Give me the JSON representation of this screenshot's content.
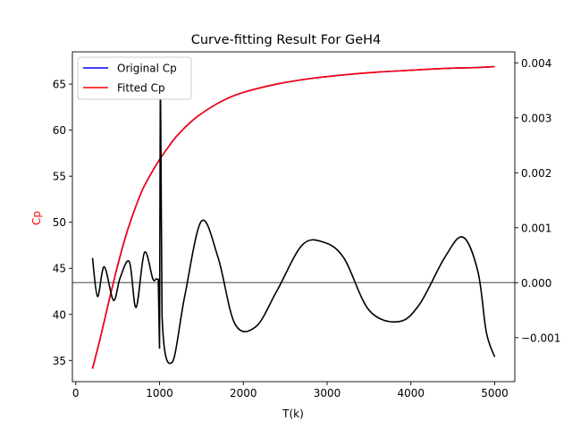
{
  "chart_data": {
    "type": "line",
    "title": "Curve-fitting Result For GeH4",
    "xlabel": "T(k)",
    "ylabel_left": "Cp",
    "ylabel_right": "",
    "xlim": [
      -40,
      5240
    ],
    "ylim_left": [
      32.7,
      68.5
    ],
    "ylim_right": [
      -0.0018,
      0.0042
    ],
    "x_ticks": [
      0,
      1000,
      2000,
      3000,
      4000,
      5000
    ],
    "x_tick_labels": [
      "0",
      "1000",
      "2000",
      "3000",
      "4000",
      "5000"
    ],
    "y_left_ticks": [
      35,
      40,
      45,
      50,
      55,
      60,
      65
    ],
    "y_left_tick_labels": [
      "35",
      "40",
      "45",
      "50",
      "55",
      "60",
      "65"
    ],
    "y_right_ticks": [
      -0.001,
      0,
      0.001,
      0.002,
      0.003,
      0.004
    ],
    "y_right_tick_labels": [
      "−0.001",
      "0.000",
      "0.001",
      "0.002",
      "0.003",
      "0.004"
    ],
    "legend_position": "top-left",
    "grid": false,
    "ylabel_color": "#ff0000",
    "series": [
      {
        "name": "Original Cp",
        "axis": "left",
        "color": "#0000ff",
        "x": [
          200,
          300,
          400,
          500,
          600,
          700,
          800,
          900,
          1000,
          1100,
          1200,
          1400,
          1600,
          1800,
          2000,
          2400,
          2800,
          3200,
          3600,
          4000,
          4400,
          4800,
          5000
        ],
        "y": [
          34.1,
          37.7,
          41.6,
          45.3,
          48.6,
          51.3,
          53.6,
          55.3,
          56.8,
          58.1,
          59.3,
          61.1,
          62.4,
          63.4,
          64.1,
          65.0,
          65.6,
          66.0,
          66.3,
          66.5,
          66.7,
          66.8,
          66.9
        ]
      },
      {
        "name": "Fitted Cp",
        "axis": "left",
        "color": "#ff0000",
        "x": [
          200,
          300,
          400,
          500,
          600,
          700,
          800,
          900,
          1000,
          1100,
          1200,
          1400,
          1600,
          1800,
          2000,
          2400,
          2800,
          3200,
          3600,
          4000,
          4400,
          4800,
          5000
        ],
        "y": [
          34.1,
          37.7,
          41.6,
          45.3,
          48.6,
          51.3,
          53.6,
          55.3,
          56.8,
          58.1,
          59.3,
          61.1,
          62.4,
          63.4,
          64.1,
          65.0,
          65.6,
          66.0,
          66.3,
          66.5,
          66.7,
          66.8,
          66.9
        ]
      },
      {
        "axis": "right",
        "color": "#000000",
        "x": [
          200,
          260,
          340,
          450,
          530,
          640,
          720,
          820,
          920,
          960,
          985,
          1000,
          1010,
          1030,
          1150,
          1300,
          1500,
          1700,
          1900,
          2150,
          2400,
          2700,
          2950,
          3200,
          3500,
          3850,
          4100,
          4400,
          4620,
          4800,
          4900,
          5000
        ],
        "y": [
          0.00045,
          -0.00025,
          0.00029,
          -0.00032,
          9e-05,
          0.00038,
          -0.00045,
          0.00055,
          7e-05,
          7e-05,
          6e-05,
          -0.0012,
          0.0039,
          -0.0006,
          -0.00145,
          -0.00025,
          0.00112,
          0.00045,
          -0.00075,
          -0.0008,
          -0.00015,
          0.00068,
          0.00074,
          0.00045,
          -0.0005,
          -0.00071,
          -0.0004,
          0.00045,
          0.00083,
          0.0002,
          -0.0009,
          -0.00135
        ]
      }
    ],
    "reference_line": {
      "axis": "right",
      "value": 0,
      "color": "#808080"
    }
  }
}
